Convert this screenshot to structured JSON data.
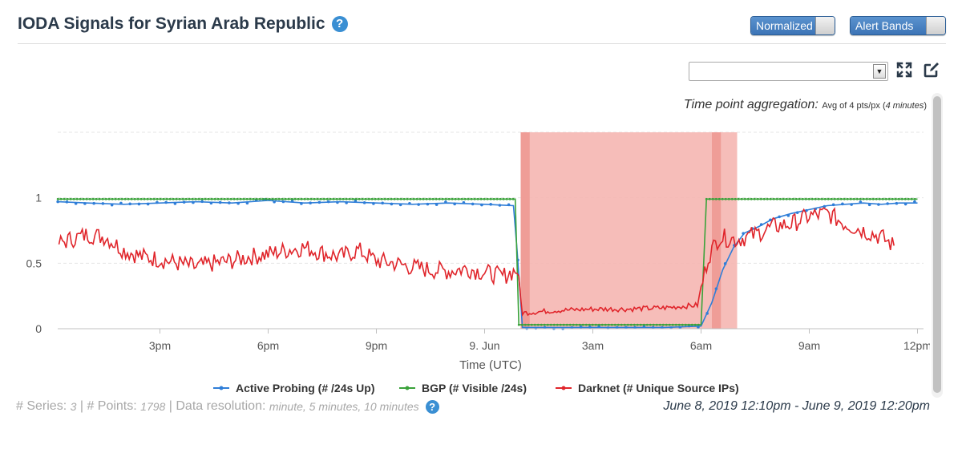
{
  "header": {
    "title": "IODA Signals for Syrian Arab Republic",
    "help": "?",
    "toggles": [
      {
        "label": "Normalized",
        "on": true
      },
      {
        "label": "Alert Bands",
        "on": true
      }
    ]
  },
  "aggregation": {
    "label": "Time point aggregation:",
    "value_prefix": "Avg of 4 pts/px (",
    "value_em": "4 minutes",
    "value_suffix": ")"
  },
  "footer": {
    "series_label": "# Series:",
    "series_count": "3",
    "points_label": "# Points:",
    "points_count": "1798",
    "resolution_label": "Data resolution:",
    "resolution_value": "minute, 5 minutes, 10 minutes",
    "range": "June 8, 2019 12:10pm - June 9, 2019 12:20pm"
  },
  "colors": {
    "active_probing": "#2f7ed8",
    "bgp": "#3aa23a",
    "darknet": "#e0252b",
    "alert_band": "#f5b6b1",
    "alert_band_dark": "#ee9993",
    "accent": "#3a8fd3"
  },
  "chart_data": {
    "type": "line",
    "x_axis": {
      "label": "Time (UTC)",
      "ticks": [
        "3pm",
        "6pm",
        "9pm",
        "9. Jun",
        "3am",
        "6am",
        "9am",
        "12pm"
      ],
      "tick_hours": [
        15,
        18,
        21,
        24,
        27,
        30,
        33,
        36
      ],
      "range_hours": [
        12.1667,
        36.1667
      ]
    },
    "y_axis": {
      "ticks": [
        "0",
        "0.5",
        "1"
      ],
      "tick_values": [
        0,
        0.5,
        1
      ],
      "range": [
        0,
        1.5
      ]
    },
    "grid": true,
    "alert_bands": [
      {
        "start_hour": 25.0,
        "end_hour": 31.0,
        "shade": "light"
      },
      {
        "start_hour": 25.0,
        "end_hour": 25.25,
        "shade": "dark"
      },
      {
        "start_hour": 30.3,
        "end_hour": 30.55,
        "shade": "dark"
      }
    ],
    "series": [
      {
        "name": "Active Probing (# /24s Up)",
        "color_key": "active_probing",
        "x": [
          12.17,
          13.0,
          14.0,
          15.0,
          16.0,
          17.0,
          18.0,
          19.0,
          20.0,
          21.0,
          22.0,
          23.0,
          24.0,
          24.8,
          24.9,
          25.05,
          25.4,
          26,
          27,
          28,
          29,
          30.0,
          30.3,
          30.6,
          30.9,
          31.2,
          31.6,
          32.0,
          32.5,
          33.0,
          33.5,
          34.0,
          34.5,
          35.0,
          35.5,
          36.0
        ],
        "y": [
          0.97,
          0.96,
          0.95,
          0.96,
          0.97,
          0.96,
          0.98,
          0.96,
          0.97,
          0.96,
          0.95,
          0.96,
          0.95,
          0.94,
          0.6,
          0.01,
          0.01,
          0.01,
          0.01,
          0.01,
          0.01,
          0.02,
          0.2,
          0.45,
          0.62,
          0.73,
          0.78,
          0.84,
          0.88,
          0.91,
          0.94,
          0.95,
          0.96,
          0.95,
          0.96,
          0.96
        ]
      },
      {
        "name": "BGP (# Visible /24s)",
        "color_key": "bgp",
        "x": [
          12.17,
          24.85,
          24.95,
          30.0,
          30.15,
          36.0
        ],
        "y": [
          0.99,
          0.99,
          0.03,
          0.03,
          0.99,
          0.99
        ],
        "dotted": true
      },
      {
        "name": "Darknet (# Unique Source IPs)",
        "color_key": "darknet",
        "x": [
          12.2,
          12.5,
          13.0,
          13.5,
          14.0,
          14.5,
          15.0,
          15.5,
          16.0,
          16.5,
          17.0,
          17.5,
          18.0,
          18.5,
          19.0,
          19.5,
          20.0,
          20.5,
          21.0,
          21.5,
          22.0,
          22.5,
          23.0,
          23.5,
          24.0,
          24.5,
          24.9,
          25.05,
          25.5,
          26.0,
          27.0,
          28.0,
          29.0,
          29.9,
          30.2,
          30.5,
          31.0,
          31.5,
          32.0,
          32.5,
          33.0,
          33.5,
          34.0,
          34.5,
          35.0,
          35.4
        ],
        "y": [
          0.65,
          0.68,
          0.72,
          0.7,
          0.6,
          0.55,
          0.53,
          0.5,
          0.47,
          0.5,
          0.52,
          0.55,
          0.57,
          0.6,
          0.62,
          0.58,
          0.55,
          0.6,
          0.52,
          0.5,
          0.47,
          0.45,
          0.44,
          0.46,
          0.43,
          0.4,
          0.45,
          0.12,
          0.13,
          0.14,
          0.15,
          0.15,
          0.16,
          0.18,
          0.55,
          0.7,
          0.68,
          0.72,
          0.78,
          0.8,
          0.86,
          0.88,
          0.8,
          0.75,
          0.7,
          0.62
        ],
        "noise": true
      }
    ]
  }
}
